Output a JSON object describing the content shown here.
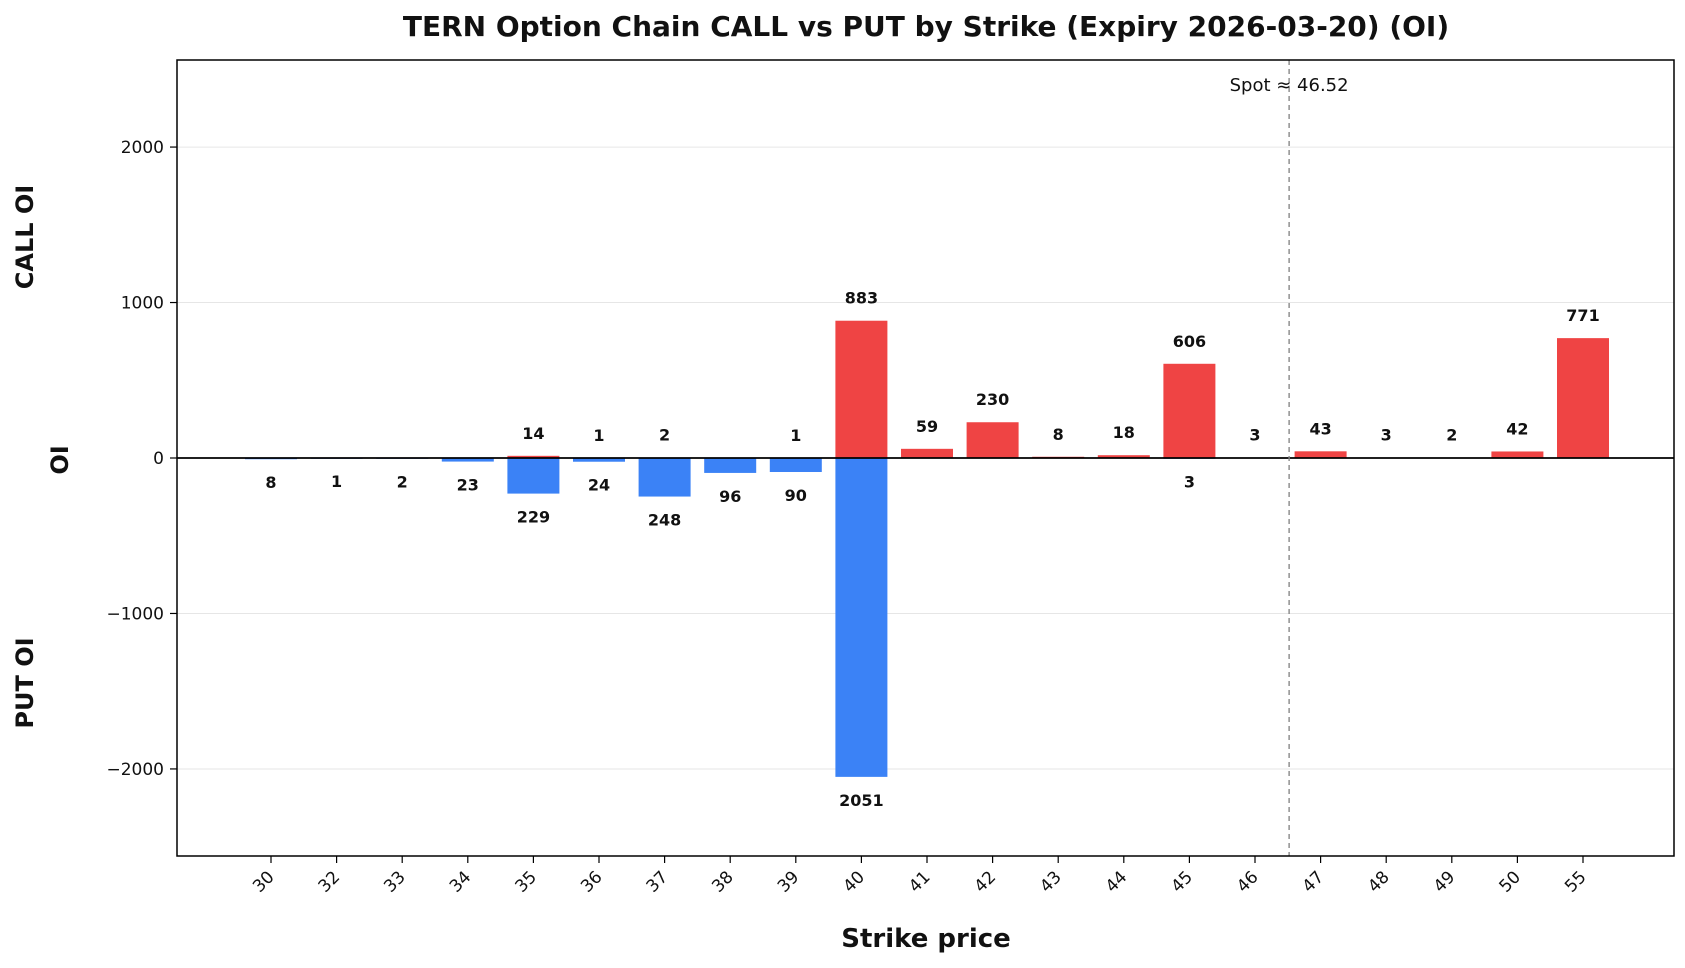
{
  "chart_data": {
    "type": "bar",
    "title": "TERN Option Chain CALL vs PUT by Strike (Expiry 2026-03-20) (OI)",
    "xlabel": "Strike price",
    "ylabel": "OI",
    "side_label_top": "CALL OI",
    "side_label_bottom": "PUT OI",
    "categories": [
      "30",
      "32",
      "33",
      "34",
      "35",
      "36",
      "37",
      "38",
      "39",
      "40",
      "41",
      "42",
      "43",
      "44",
      "45",
      "46",
      "47",
      "48",
      "49",
      "50",
      "55"
    ],
    "series": [
      {
        "name": "CALL OI",
        "color": "#ef4444",
        "values": [
          0,
          0,
          0,
          0,
          14,
          1,
          2,
          0,
          1,
          883,
          59,
          230,
          8,
          18,
          606,
          3,
          43,
          3,
          2,
          42,
          771
        ]
      },
      {
        "name": "PUT OI",
        "color": "#3b82f6",
        "values": [
          8,
          1,
          2,
          23,
          229,
          24,
          248,
          96,
          90,
          2051,
          0,
          0,
          0,
          0,
          3,
          0,
          0,
          0,
          0,
          0,
          0
        ]
      }
    ],
    "ylim": [
      -2560,
      2560
    ],
    "yticks": [
      -2000,
      -1000,
      0,
      1000,
      2000
    ],
    "ytick_labels": [
      "−2000",
      "−1000",
      "0",
      "1000",
      "2000"
    ],
    "grid": true,
    "spot": {
      "value": 46.52,
      "label": "Spot ≈ 46.52",
      "position_between": [
        "46",
        "47"
      ]
    }
  }
}
